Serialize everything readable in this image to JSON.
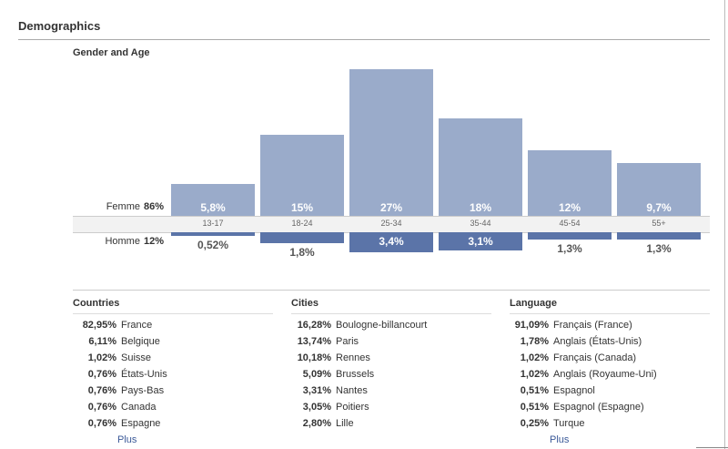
{
  "page": {
    "title": "Demographics"
  },
  "gender_age": {
    "title": "Gender and Age",
    "femme_label": "Femme",
    "femme_total": "86%",
    "homme_label": "Homme",
    "homme_total": "12%",
    "groups": [
      {
        "age": "13-17",
        "femme": "5,8%",
        "homme": "0,52%"
      },
      {
        "age": "18-24",
        "femme": "15%",
        "homme": "1,8%"
      },
      {
        "age": "25-34",
        "femme": "27%",
        "homme": "3,4%"
      },
      {
        "age": "35-44",
        "femme": "18%",
        "homme": "3,1%"
      },
      {
        "age": "45-54",
        "femme": "12%",
        "homme": "1,3%"
      },
      {
        "age": "55+",
        "femme": "9,7%",
        "homme": "1,3%"
      }
    ],
    "colors": {
      "femme": "#9aabca",
      "homme": "#5b74a8"
    }
  },
  "countries": {
    "title": "Countries",
    "more": "Plus",
    "rows": [
      {
        "pct": "82,95%",
        "name": "France"
      },
      {
        "pct": "6,11%",
        "name": "Belgique"
      },
      {
        "pct": "1,02%",
        "name": "Suisse"
      },
      {
        "pct": "0,76%",
        "name": "États-Unis"
      },
      {
        "pct": "0,76%",
        "name": "Pays-Bas"
      },
      {
        "pct": "0,76%",
        "name": "Canada"
      },
      {
        "pct": "0,76%",
        "name": "Espagne"
      }
    ]
  },
  "cities": {
    "title": "Cities",
    "rows": [
      {
        "pct": "16,28%",
        "name": "Boulogne-billancourt"
      },
      {
        "pct": "13,74%",
        "name": "Paris"
      },
      {
        "pct": "10,18%",
        "name": "Rennes"
      },
      {
        "pct": "5,09%",
        "name": "Brussels"
      },
      {
        "pct": "3,31%",
        "name": "Nantes"
      },
      {
        "pct": "3,05%",
        "name": "Poitiers"
      },
      {
        "pct": "2,80%",
        "name": "Lille"
      }
    ]
  },
  "language": {
    "title": "Language",
    "more": "Plus",
    "rows": [
      {
        "pct": "91,09%",
        "name": "Français (France)"
      },
      {
        "pct": "1,78%",
        "name": "Anglais (États-Unis)"
      },
      {
        "pct": "1,02%",
        "name": "Français (Canada)"
      },
      {
        "pct": "1,02%",
        "name": "Anglais (Royaume-Uni)"
      },
      {
        "pct": "0,51%",
        "name": "Espagnol"
      },
      {
        "pct": "0,51%",
        "name": "Espagnol (Espagne)"
      },
      {
        "pct": "0,25%",
        "name": "Turque"
      }
    ]
  }
}
